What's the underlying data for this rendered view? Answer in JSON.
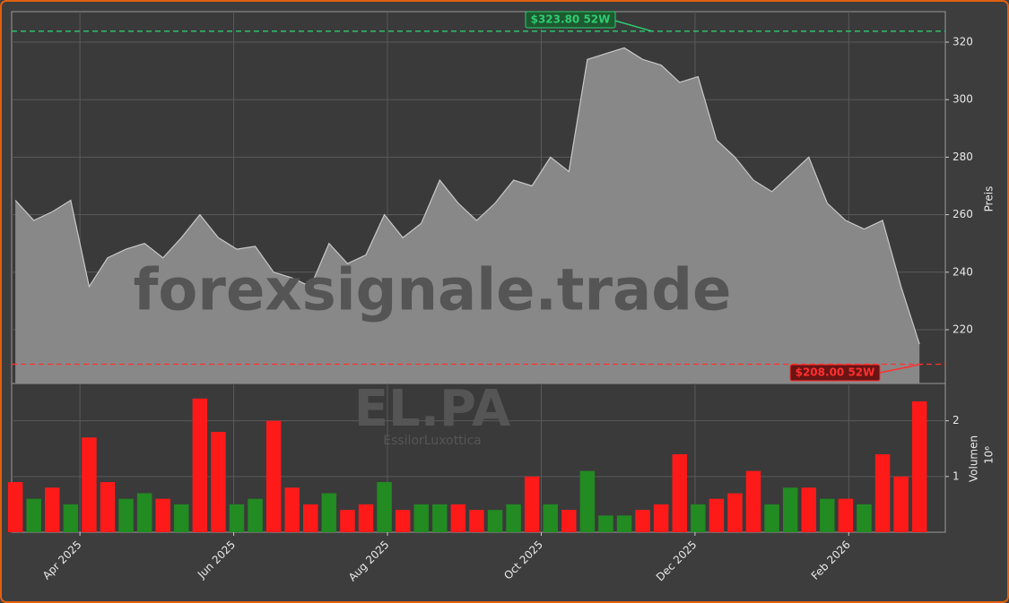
{
  "chart_data": {
    "type": "area",
    "watermark": "forexsignale.trade",
    "ticker": "EL.PA",
    "company": "EssilorLuxottica",
    "ylabel": "Preis",
    "y2label": "Volumen",
    "y2_offset": "10⁶",
    "x": [
      2025.18,
      2025.2,
      2025.22,
      2025.24,
      2025.26,
      2025.28,
      2025.3,
      2025.32,
      2025.34,
      2025.36,
      2025.38,
      2025.4,
      2025.42,
      2025.44,
      2025.46,
      2025.48,
      2025.5,
      2025.52,
      2025.54,
      2025.56,
      2025.58,
      2025.6,
      2025.62,
      2025.64,
      2025.66,
      2025.68,
      2025.7,
      2025.72,
      2025.74,
      2025.76,
      2025.78,
      2025.8,
      2025.82,
      2025.84,
      2025.86,
      2025.88,
      2025.9,
      2025.92,
      2025.94,
      2025.96,
      2025.98,
      2026.0,
      2026.02,
      2026.04,
      2026.06,
      2026.08,
      2026.1,
      2026.12,
      2026.14,
      2026.16
    ],
    "series": [
      {
        "color": "#c8c8c8",
        "fill": "#888888",
        "values": [
          265,
          258,
          261,
          265,
          235,
          245,
          248,
          250,
          245,
          252,
          260,
          252,
          248,
          249,
          240,
          238,
          235,
          250,
          243,
          246,
          260,
          252,
          257,
          272,
          264,
          258,
          264,
          272,
          270,
          280,
          275,
          314,
          316,
          318,
          314,
          312,
          306,
          308,
          286,
          280,
          272,
          268,
          274,
          280,
          264,
          258,
          255,
          258,
          235,
          215
        ]
      }
    ],
    "volume": {
      "colors": [
        "#ff1a1a",
        "#228b22",
        "#ff1a1a",
        "#228b22",
        "#ff1a1a",
        "#ff1a1a",
        "#228b22",
        "#228b22",
        "#ff1a1a",
        "#228b22",
        "#ff1a1a",
        "#ff1a1a",
        "#228b22",
        "#228b22",
        "#ff1a1a",
        "#ff1a1a",
        "#ff1a1a",
        "#228b22",
        "#ff1a1a",
        "#ff1a1a",
        "#228b22",
        "#ff1a1a",
        "#228b22",
        "#228b22",
        "#ff1a1a",
        "#ff1a1a",
        "#228b22",
        "#228b22",
        "#ff1a1a",
        "#228b22",
        "#ff1a1a",
        "#228b22",
        "#228b22",
        "#228b22",
        "#ff1a1a",
        "#ff1a1a",
        "#ff1a1a",
        "#228b22",
        "#ff1a1a",
        "#ff1a1a",
        "#ff1a1a",
        "#228b22",
        "#228b22",
        "#ff1a1a",
        "#228b22",
        "#ff1a1a",
        "#228b22",
        "#ff1a1a",
        "#ff1a1a",
        "#ff1a1a"
      ],
      "values": [
        0.9,
        0.6,
        0.8,
        0.5,
        1.7,
        0.9,
        0.6,
        0.7,
        0.6,
        0.5,
        2.4,
        1.8,
        0.5,
        0.6,
        2.0,
        0.8,
        0.5,
        0.7,
        0.4,
        0.5,
        0.9,
        0.4,
        0.5,
        0.5,
        0.5,
        0.4,
        0.4,
        0.5,
        1.0,
        0.5,
        0.4,
        1.1,
        0.3,
        0.3,
        0.4,
        0.5,
        1.4,
        0.5,
        0.6,
        0.7,
        1.1,
        0.5,
        0.8,
        0.8,
        0.6,
        0.6,
        0.5,
        1.4,
        1.0,
        2.35
      ]
    },
    "high": {
      "value": 323.8,
      "label": "$323.80 52W",
      "color": "#2ecc71"
    },
    "low": {
      "value": 208.0,
      "label": "$208.00 52W",
      "color": "#ff3030"
    },
    "xlim": [
      2025.176,
      2026.188
    ],
    "xticks": [
      {
        "value": 2025.25,
        "label": "Apr 2025"
      },
      {
        "value": 2025.4167,
        "label": "Jun 2025"
      },
      {
        "value": 2025.5833,
        "label": "Aug 2025"
      },
      {
        "value": 2025.75,
        "label": "Oct 2025"
      },
      {
        "value": 2025.9167,
        "label": "Dec 2025"
      },
      {
        "value": 2026.0833,
        "label": "Feb 2026"
      }
    ],
    "ylim": [
      201.3,
      330.6
    ],
    "yticks": [
      220,
      240,
      260,
      280,
      300,
      320
    ],
    "y2lim": [
      0,
      2.67
    ],
    "y2ticks": [
      1,
      2
    ],
    "grid": true
  }
}
